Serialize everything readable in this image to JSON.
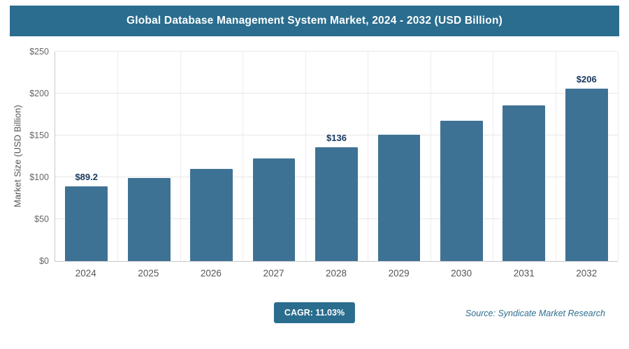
{
  "header": {
    "title": "Global Database Management System Market, 2024 - 2032 (USD Billion)"
  },
  "chart_data": {
    "type": "bar",
    "title": "Global Database Management System Market, 2024 - 2032 (USD Billion)",
    "categories": [
      "2024",
      "2025",
      "2026",
      "2027",
      "2028",
      "2029",
      "2030",
      "2031",
      "2032"
    ],
    "values": [
      89.2,
      99,
      109.9,
      122.1,
      135.5,
      150.5,
      167.1,
      185.5,
      206
    ],
    "bar_labels": [
      "$89.2",
      "",
      "",
      "",
      "$136",
      "",
      "",
      "",
      "$206"
    ],
    "ylabel": "Market Size (USD Billion)",
    "xlabel": "",
    "yticks": [
      "$0",
      "$50",
      "$100",
      "$150",
      "$200",
      "$250"
    ],
    "ylim": [
      0,
      250
    ],
    "bar_color": "#3e7294",
    "grid": true,
    "legend": false
  },
  "footer": {
    "cagr_label": "CAGR: 11.03%",
    "source": "Source: Syndicate Market Research"
  },
  "colors": {
    "header_bg": "#2a6d8e",
    "badge_bg": "#2a6d8e",
    "bar_color": "#3e7294",
    "value_label_color": "#17375e",
    "source_color": "#2e6e8e"
  }
}
